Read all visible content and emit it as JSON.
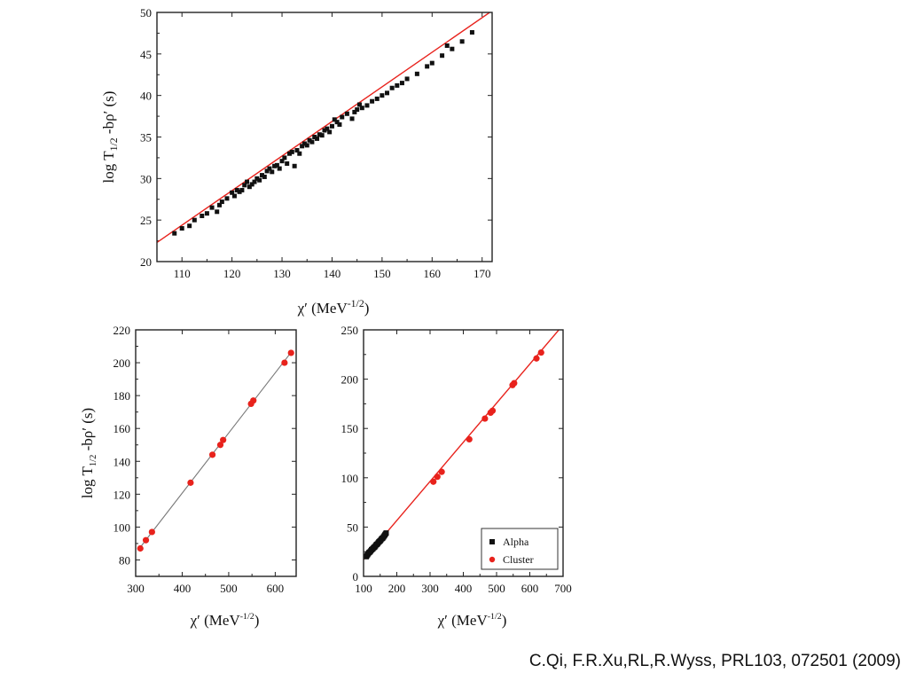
{
  "citation": "C.Qi, F.R.Xu,RL,R.Wyss, PRL103, 072501 (2009)",
  "colors": {
    "alpha": "#111111",
    "cluster": "#e8221c",
    "fit_red": "#e8221c",
    "fit_gray": "#777777"
  },
  "chart_data": [
    {
      "type": "scatter",
      "ylabel": "log T1/2 -bρ' (s)",
      "xlabel": "χ' (MeV-1/2)",
      "xlim": [
        105,
        172
      ],
      "ylim": [
        20,
        50
      ],
      "xticks": [
        110,
        120,
        130,
        140,
        150,
        160,
        170
      ],
      "yticks": [
        20,
        25,
        30,
        35,
        40,
        45,
        50
      ],
      "fit_line": {
        "x": [
          105,
          172
        ],
        "y": [
          22.3,
          50.2
        ]
      },
      "series": [
        {
          "marker": "square",
          "x": [
            108.5,
            110,
            111.5,
            112.5,
            114,
            115,
            116,
            117,
            117.5,
            118,
            119,
            120,
            120.5,
            121,
            121.5,
            122,
            122.5,
            123,
            123.5,
            124,
            124.5,
            125,
            125.5,
            126,
            126.5,
            127,
            127.5,
            128,
            128.5,
            129,
            129.5,
            130,
            130.5,
            131,
            131.5,
            132,
            132.5,
            133,
            133.5,
            134,
            134.5,
            135,
            135.5,
            136,
            136.5,
            137,
            137.5,
            138,
            138.5,
            139,
            139.5,
            140,
            140.5,
            141,
            141.5,
            142,
            143,
            144,
            144.5,
            145,
            145.5,
            146,
            147,
            148,
            149,
            150,
            151,
            152,
            153,
            154,
            155,
            157,
            159,
            160,
            162,
            163,
            164,
            166,
            168
          ],
          "y": [
            23.4,
            24,
            24.3,
            25,
            25.5,
            25.8,
            26.5,
            26,
            26.8,
            27.2,
            27.6,
            28.3,
            27.9,
            28.6,
            28.4,
            28.6,
            29.2,
            29.6,
            29,
            29.3,
            29.6,
            30,
            29.8,
            30.4,
            30.2,
            30.9,
            31.2,
            30.8,
            31.5,
            31.6,
            31.2,
            32.1,
            32.5,
            31.8,
            33,
            33.2,
            31.5,
            33.4,
            33,
            33.9,
            34.2,
            34,
            34.6,
            34.4,
            35,
            34.8,
            35.3,
            35.2,
            35.8,
            36,
            35.6,
            36.3,
            37.1,
            36.8,
            36.5,
            37.4,
            37.8,
            37.2,
            38,
            38.3,
            38.9,
            38.5,
            38.8,
            39.3,
            39.6,
            40,
            40.3,
            40.9,
            41.2,
            41.5,
            42,
            42.6,
            43.5,
            43.9,
            44.8,
            46,
            45.6,
            46.5,
            47.6
          ]
        }
      ]
    },
    {
      "type": "scatter",
      "ylabel": "log T1/2 -bρ' (s)",
      "xlabel": "χ' (MeV-1/2)",
      "xlim": [
        300,
        645
      ],
      "ylim": [
        70,
        220
      ],
      "xticks": [
        300,
        400,
        500,
        600
      ],
      "yticks": [
        80,
        100,
        120,
        140,
        160,
        180,
        200,
        220
      ],
      "fit_line": {
        "x": [
          308,
          636
        ],
        "y": [
          87,
          207
        ]
      },
      "series": [
        {
          "marker": "circle",
          "x": [
            310,
            322,
            335,
            418,
            465,
            482,
            488,
            548,
            553,
            620,
            634
          ],
          "y": [
            87,
            92,
            97,
            127,
            144,
            150,
            153,
            175,
            177,
            200,
            206
          ]
        }
      ]
    },
    {
      "type": "scatter",
      "ylabel": "",
      "xlabel": "χ' (MeV-1/2)",
      "xlim": [
        100,
        700
      ],
      "ylim": [
        0,
        250
      ],
      "xticks": [
        100,
        200,
        300,
        400,
        500,
        600,
        700
      ],
      "yticks": [
        0,
        50,
        100,
        150,
        200,
        250
      ],
      "legend": {
        "position": "bottom-right",
        "entries": [
          "Alpha",
          "Cluster"
        ]
      },
      "fit_line": {
        "x": [
          100,
          700
        ],
        "y": [
          17,
          255
        ]
      },
      "series": [
        {
          "name": "Alpha",
          "marker": "square",
          "x": [
            108,
            110,
            112,
            114,
            116,
            118,
            120,
            122,
            124,
            126,
            128,
            130,
            132,
            134,
            136,
            138,
            140,
            142,
            144,
            146,
            148,
            150,
            152,
            154,
            156,
            158,
            160,
            162,
            164,
            166,
            168
          ],
          "y": [
            20,
            21,
            22,
            23,
            24,
            24.5,
            25,
            26,
            27,
            27.5,
            28,
            29,
            29.5,
            30,
            31,
            32,
            32.5,
            33,
            34,
            35,
            35.5,
            36,
            37,
            38,
            38.5,
            39,
            40,
            41,
            42,
            43,
            44
          ]
        },
        {
          "name": "Cluster",
          "marker": "circle",
          "x": [
            310,
            322,
            335,
            418,
            465,
            482,
            488,
            548,
            553,
            620,
            634
          ],
          "y": [
            96,
            101,
            106,
            139,
            160,
            166,
            168,
            194,
            196,
            221,
            227
          ]
        }
      ]
    }
  ]
}
